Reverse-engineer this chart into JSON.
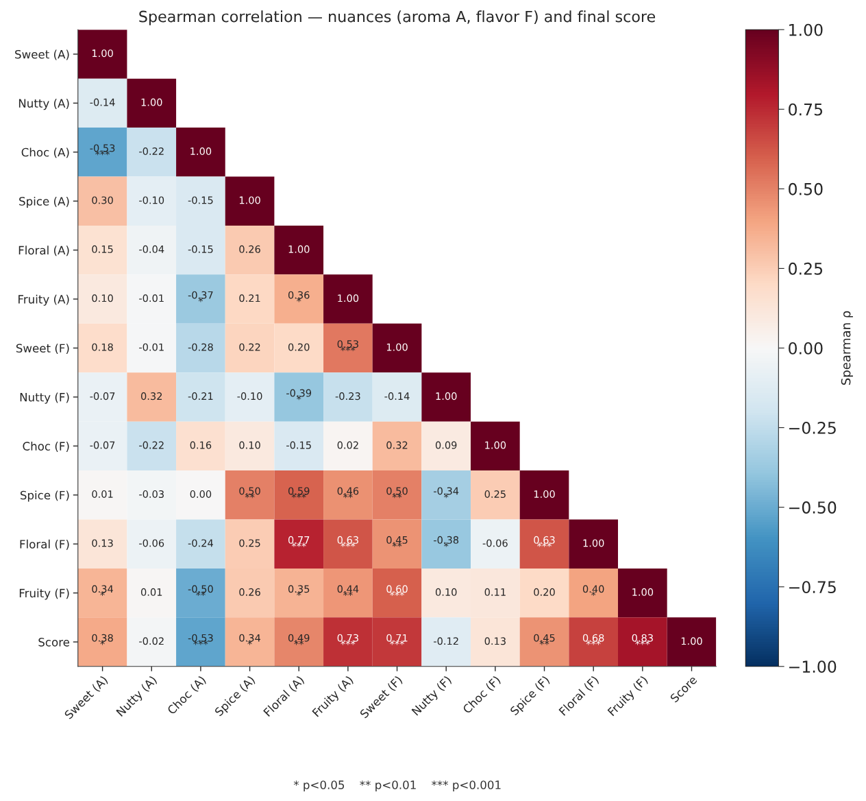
{
  "chart_data": {
    "type": "heatmap",
    "title": "Spearman correlation — nuances (aroma A, flavor F) and final score",
    "categories": [
      "Sweet (A)",
      "Nutty (A)",
      "Choc (A)",
      "Spice (A)",
      "Floral (A)",
      "Fruity (A)",
      "Sweet (F)",
      "Nutty (F)",
      "Choc (F)",
      "Spice (F)",
      "Floral (F)",
      "Fruity (F)",
      "Score"
    ],
    "y_categories": [
      "Sweet (A)",
      "Nutty (A)",
      "Choc (A)",
      "Spice (A)",
      "Floral (A)",
      "Fruity (A)",
      "Sweet (F)",
      "Nutty (F)",
      "Choc (F)",
      "Spice (F)",
      "Floral (F)",
      "Fruity (F)",
      "Score"
    ],
    "cells": [
      [
        1.0,
        null,
        null,
        null,
        null,
        null,
        null,
        null,
        null,
        null,
        null,
        null,
        null
      ],
      [
        -0.14,
        1.0,
        null,
        null,
        null,
        null,
        null,
        null,
        null,
        null,
        null,
        null,
        null
      ],
      [
        -0.53,
        -0.22,
        1.0,
        null,
        null,
        null,
        null,
        null,
        null,
        null,
        null,
        null,
        null
      ],
      [
        0.3,
        -0.1,
        -0.15,
        1.0,
        null,
        null,
        null,
        null,
        null,
        null,
        null,
        null,
        null
      ],
      [
        0.15,
        -0.04,
        -0.15,
        0.26,
        1.0,
        null,
        null,
        null,
        null,
        null,
        null,
        null,
        null
      ],
      [
        0.1,
        -0.01,
        -0.37,
        0.21,
        0.36,
        1.0,
        null,
        null,
        null,
        null,
        null,
        null,
        null
      ],
      [
        0.18,
        -0.01,
        -0.28,
        0.22,
        0.2,
        0.53,
        1.0,
        null,
        null,
        null,
        null,
        null,
        null
      ],
      [
        -0.07,
        0.32,
        -0.21,
        -0.1,
        -0.39,
        -0.23,
        -0.14,
        1.0,
        null,
        null,
        null,
        null,
        null
      ],
      [
        -0.07,
        -0.22,
        0.16,
        0.1,
        -0.15,
        0.02,
        0.32,
        0.09,
        1.0,
        null,
        null,
        null,
        null
      ],
      [
        0.01,
        -0.03,
        0.0,
        0.5,
        0.59,
        0.46,
        0.5,
        -0.34,
        0.25,
        1.0,
        null,
        null,
        null
      ],
      [
        0.13,
        -0.06,
        -0.24,
        0.25,
        0.77,
        0.63,
        0.45,
        -0.38,
        -0.06,
        0.63,
        1.0,
        null,
        null
      ],
      [
        0.34,
        0.01,
        -0.5,
        0.26,
        0.35,
        0.44,
        0.6,
        0.1,
        0.11,
        0.2,
        0.4,
        1.0,
        null
      ],
      [
        0.38,
        -0.02,
        -0.53,
        0.34,
        0.49,
        0.73,
        0.71,
        -0.12,
        0.13,
        0.45,
        0.68,
        0.83,
        1.0
      ]
    ],
    "cell_labels": [
      [
        "1.00",
        null,
        null,
        null,
        null,
        null,
        null,
        null,
        null,
        null,
        null,
        null,
        null
      ],
      [
        "-0.14",
        "1.00",
        null,
        null,
        null,
        null,
        null,
        null,
        null,
        null,
        null,
        null,
        null
      ],
      [
        "-0.53\n***",
        "-0.22",
        "1.00",
        null,
        null,
        null,
        null,
        null,
        null,
        null,
        null,
        null,
        null
      ],
      [
        "0.30",
        "-0.10",
        "-0.15",
        "1.00",
        null,
        null,
        null,
        null,
        null,
        null,
        null,
        null,
        null
      ],
      [
        "0.15",
        "-0.04",
        "-0.15",
        "0.26",
        "1.00",
        null,
        null,
        null,
        null,
        null,
        null,
        null,
        null
      ],
      [
        "0.10",
        "-0.01",
        "-0.37\n*",
        "0.21",
        "0.36\n*",
        "1.00",
        null,
        null,
        null,
        null,
        null,
        null,
        null
      ],
      [
        "0.18",
        "-0.01",
        "-0.28",
        "0.22",
        "0.20",
        "0.53\n***",
        "1.00",
        null,
        null,
        null,
        null,
        null,
        null
      ],
      [
        "-0.07",
        "0.32",
        "-0.21",
        "-0.10",
        "-0.39\n*",
        "-0.23",
        "-0.14",
        "1.00",
        null,
        null,
        null,
        null,
        null
      ],
      [
        "-0.07",
        "-0.22",
        "0.16",
        "0.10",
        "-0.15",
        "0.02",
        "0.32",
        "0.09",
        "1.00",
        null,
        null,
        null,
        null
      ],
      [
        "0.01",
        "-0.03",
        "0.00",
        "0.50\n**",
        "0.59\n***",
        "0.46\n**",
        "0.50\n**",
        "-0.34\n*",
        "0.25",
        "1.00",
        null,
        null,
        null
      ],
      [
        "0.13",
        "-0.06",
        "-0.24",
        "0.25",
        "0.77\n***",
        "0.63\n***",
        "0.45\n**",
        "-0.38\n*",
        "-0.06",
        "0.63\n***",
        "1.00",
        null,
        null
      ],
      [
        "0.34\n*",
        "0.01",
        "-0.50\n**",
        "0.26",
        "0.35\n*",
        "0.44\n**",
        "0.60\n***",
        "0.10",
        "0.11",
        "0.20",
        "0.40\n*",
        "1.00",
        null
      ],
      [
        "0.38\n*",
        "-0.02",
        "-0.53\n***",
        "0.34\n*",
        "0.49\n**",
        "0.73\n***",
        "0.71\n***",
        "-0.12",
        "0.13",
        "0.45\n**",
        "0.68\n***",
        "0.83\n***",
        "1.00"
      ]
    ],
    "clim": [
      -1,
      1
    ],
    "cticks": [
      {
        "value": -1,
        "label": "−1.00"
      },
      {
        "value": -0.75,
        "label": "−0.75"
      },
      {
        "value": -0.5,
        "label": "−0.50"
      },
      {
        "value": -0.25,
        "label": "−0.25"
      },
      {
        "value": 0,
        "label": "0.00"
      },
      {
        "value": 0.25,
        "label": "0.25"
      },
      {
        "value": 0.5,
        "label": "0.50"
      },
      {
        "value": 0.75,
        "label": "0.75"
      },
      {
        "value": 1,
        "label": "1.00"
      }
    ],
    "clabel": "Spearman ρ",
    "annotations": [
      "* p<0.05    ** p<0.01    *** p<0.001"
    ]
  }
}
